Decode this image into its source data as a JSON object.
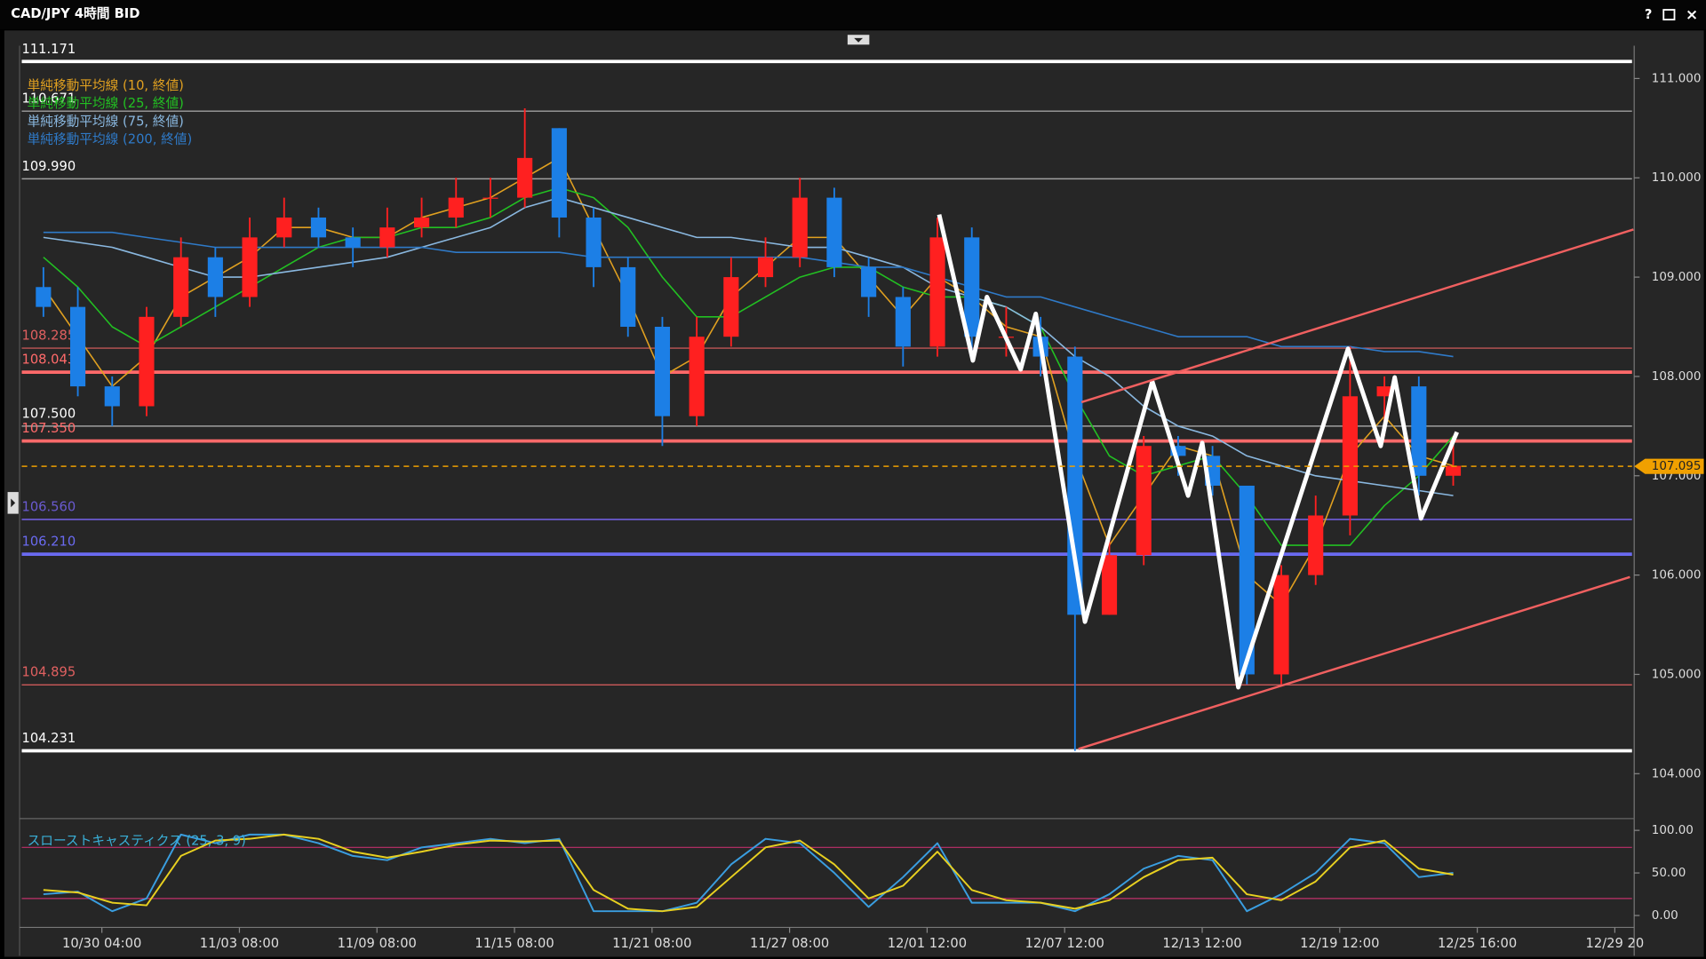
{
  "ui": {
    "help": "?",
    "close": "×"
  },
  "chart_data": [
    {
      "type": "candlestick",
      "title": "CAD/JPY 4時間 BID",
      "x": [
        0,
        1,
        2,
        3,
        4,
        5,
        6,
        7,
        8,
        9,
        10,
        11,
        12,
        13,
        14,
        15,
        16,
        17,
        18,
        19,
        20,
        21,
        22,
        23,
        24,
        25,
        26,
        27,
        28,
        29,
        30,
        31,
        32,
        33,
        34,
        35,
        36,
        37,
        38,
        39,
        40,
        41
      ],
      "open": [
        108.9,
        108.7,
        107.9,
        107.7,
        108.6,
        109.2,
        108.8,
        109.4,
        109.6,
        109.4,
        109.3,
        109.5,
        109.6,
        109.8,
        109.8,
        110.5,
        109.6,
        109.1,
        108.5,
        107.6,
        108.4,
        109.0,
        109.2,
        109.8,
        109.1,
        108.8,
        108.3,
        109.4,
        108.4,
        108.4,
        108.2,
        105.6,
        106.2,
        107.3,
        107.2,
        106.9,
        105.0,
        106.0,
        106.6,
        107.8,
        107.9,
        107.0
      ],
      "high": [
        109.1,
        108.9,
        108.0,
        108.7,
        109.4,
        109.3,
        109.6,
        109.8,
        109.7,
        109.5,
        109.7,
        109.8,
        110.0,
        110.0,
        110.7,
        110.5,
        109.7,
        109.2,
        108.6,
        108.6,
        109.2,
        109.4,
        110.0,
        109.9,
        109.2,
        108.9,
        109.6,
        109.5,
        108.7,
        108.6,
        108.3,
        106.4,
        107.4,
        107.4,
        107.3,
        106.9,
        106.1,
        106.8,
        108.3,
        108.0,
        108.0,
        107.4
      ],
      "low": [
        108.6,
        107.8,
        107.5,
        107.6,
        108.5,
        108.6,
        108.7,
        109.3,
        109.3,
        109.1,
        109.2,
        109.4,
        109.5,
        109.6,
        109.7,
        109.4,
        108.9,
        108.4,
        107.3,
        107.5,
        108.3,
        108.9,
        109.1,
        109.0,
        108.6,
        108.1,
        108.2,
        108.2,
        108.2,
        108.0,
        104.23,
        105.6,
        106.1,
        107.0,
        106.8,
        104.9,
        104.9,
        105.9,
        106.4,
        107.4,
        106.8,
        106.9
      ],
      "close": [
        108.7,
        107.9,
        107.7,
        108.6,
        109.2,
        108.8,
        109.4,
        109.6,
        109.4,
        109.3,
        109.5,
        109.6,
        109.8,
        109.8,
        110.2,
        109.6,
        109.1,
        108.5,
        107.6,
        108.4,
        109.0,
        109.2,
        109.8,
        109.1,
        108.8,
        108.3,
        109.4,
        108.4,
        108.4,
        108.2,
        105.6,
        106.2,
        107.3,
        107.2,
        106.9,
        105.0,
        106.0,
        106.6,
        107.8,
        107.9,
        107.0,
        107.1
      ],
      "up_color": "#ff2020",
      "down_color": "#1c7fe6",
      "series": [
        {
          "name": "単純移動平均線 (10, 終値)",
          "color": "#e0a020",
          "values": [
            108.9,
            108.4,
            107.9,
            108.2,
            108.8,
            109.0,
            109.2,
            109.5,
            109.5,
            109.4,
            109.4,
            109.6,
            109.7,
            109.8,
            110.0,
            110.2,
            109.5,
            108.8,
            108.0,
            108.2,
            108.8,
            109.1,
            109.4,
            109.4,
            109.0,
            108.6,
            109.0,
            108.8,
            108.5,
            108.4,
            107.2,
            106.3,
            106.8,
            107.3,
            107.2,
            106.0,
            105.7,
            106.3,
            107.2,
            107.6,
            107.2,
            107.1
          ]
        },
        {
          "name": "単純移動平均線 (25, 終値)",
          "color": "#22c022",
          "values": [
            109.2,
            108.9,
            108.5,
            108.3,
            108.5,
            108.7,
            108.9,
            109.1,
            109.3,
            109.4,
            109.4,
            109.5,
            109.5,
            109.6,
            109.8,
            109.9,
            109.8,
            109.5,
            109.0,
            108.6,
            108.6,
            108.8,
            109.0,
            109.1,
            109.1,
            108.9,
            108.8,
            108.8,
            108.7,
            108.5,
            107.8,
            107.2,
            107.0,
            107.1,
            107.2,
            106.8,
            106.3,
            106.3,
            106.3,
            106.7,
            107.0,
            107.4
          ]
        },
        {
          "name": "単純移動平均線 (75, 終値)",
          "color": "#8ab8e0",
          "values": [
            109.4,
            109.35,
            109.3,
            109.2,
            109.1,
            109.0,
            109.0,
            109.05,
            109.1,
            109.15,
            109.2,
            109.3,
            109.4,
            109.5,
            109.7,
            109.8,
            109.7,
            109.6,
            109.5,
            109.4,
            109.4,
            109.35,
            109.3,
            109.3,
            109.2,
            109.1,
            108.9,
            108.8,
            108.7,
            108.5,
            108.2,
            108.0,
            107.7,
            107.5,
            107.4,
            107.2,
            107.1,
            107.0,
            106.95,
            106.9,
            106.85,
            106.8
          ]
        },
        {
          "name": "単純移動平均線 (200, 終値)",
          "color": "#2f7ac8",
          "values": [
            109.45,
            109.45,
            109.45,
            109.4,
            109.35,
            109.3,
            109.3,
            109.3,
            109.3,
            109.3,
            109.3,
            109.3,
            109.25,
            109.25,
            109.25,
            109.25,
            109.2,
            109.2,
            109.2,
            109.2,
            109.2,
            109.2,
            109.2,
            109.15,
            109.1,
            109.1,
            109.0,
            108.9,
            108.8,
            108.8,
            108.7,
            108.6,
            108.5,
            108.4,
            108.4,
            108.4,
            108.3,
            108.3,
            108.3,
            108.25,
            108.25,
            108.2
          ]
        }
      ],
      "levels": [
        {
          "value": 111.171,
          "color": "#ffffff",
          "width": 3
        },
        {
          "value": 110.671,
          "color": "#a0a0a0",
          "width": 1.2
        },
        {
          "value": 109.99,
          "label": "109.990",
          "color": "#a0a0a0",
          "width": 1.2
        },
        {
          "value": 108.285,
          "color": "#e06060",
          "width": 1
        },
        {
          "value": 108.043,
          "color": "#ff6a6a",
          "width": 3
        },
        {
          "value": 107.5,
          "label": "107.500",
          "color": "#a0a0a0",
          "width": 1.2
        },
        {
          "value": 107.35,
          "label": "107.350",
          "color": "#ff6a6a",
          "width": 3
        },
        {
          "value": 106.56,
          "label": "106.560",
          "color": "#6a5ad0",
          "width": 1.5
        },
        {
          "value": 106.21,
          "label": "106.210",
          "color": "#6a6af0",
          "width": 3
        },
        {
          "value": 104.895,
          "color": "#e06060",
          "width": 1
        },
        {
          "value": 104.231,
          "color": "#ffffff",
          "width": 3
        }
      ],
      "drawings": [
        {
          "color": "#ffffff",
          "width": 4,
          "x": [
            26.05,
            27.03,
            27.44,
            28.42,
            28.86,
            30.29,
            32.25,
            33.29,
            33.7,
            34.75,
            37.94,
            38.89,
            39.3,
            40.06,
            41.11
          ],
          "y": [
            109.63,
            108.16,
            108.8,
            108.07,
            108.63,
            105.53,
            107.95,
            106.8,
            107.33,
            104.87,
            108.28,
            107.3,
            107.99,
            106.57,
            107.44
          ]
        },
        {
          "color": "#f06060",
          "width": 2,
          "x": [
            30.19,
            46.24
          ],
          "y": [
            107.74,
            109.48
          ]
        },
        {
          "color": "#f06060",
          "width": 2,
          "x": [
            30.1,
            46.14
          ],
          "y": [
            104.25,
            105.98
          ]
        }
      ],
      "current": {
        "value": 107.095,
        "color": "#f0a000"
      },
      "xlim": [
        -0.63,
        46.2
      ],
      "ylim": [
        103.57,
        111.33
      ],
      "yticks": [
        {
          "value": 104,
          "label": "104.000"
        },
        {
          "value": 105,
          "label": "105.000"
        },
        {
          "value": 106,
          "label": "106.000"
        },
        {
          "value": 107,
          "label": "107.000"
        },
        {
          "value": 108,
          "label": "108.000"
        },
        {
          "value": 109,
          "label": "109.000"
        },
        {
          "value": 110,
          "label": "110.000"
        },
        {
          "value": 111,
          "label": "111.000"
        }
      ],
      "grid": false
    },
    {
      "type": "line",
      "title": "スローストキャスティクス (25, 3, 9)",
      "title_color": "#3ab0d8",
      "x": [
        0,
        1,
        2,
        3,
        4,
        5,
        6,
        7,
        8,
        9,
        10,
        11,
        12,
        13,
        14,
        15,
        16,
        17,
        18,
        19,
        20,
        21,
        22,
        23,
        24,
        25,
        26,
        27,
        28,
        29,
        30,
        31,
        32,
        33,
        34,
        35,
        36,
        37,
        38,
        39,
        40,
        41
      ],
      "series": [
        {
          "color": "#3a9ee0",
          "values": [
            25,
            28,
            5,
            20,
            95,
            85,
            95,
            95,
            85,
            70,
            65,
            80,
            85,
            90,
            85,
            90,
            5,
            5,
            5,
            15,
            60,
            90,
            85,
            50,
            10,
            45,
            85,
            15,
            15,
            15,
            5,
            25,
            55,
            70,
            65,
            5,
            25,
            50,
            90,
            85,
            45,
            50
          ]
        },
        {
          "color": "#e8d020",
          "values": [
            30,
            27,
            15,
            12,
            70,
            88,
            90,
            95,
            90,
            75,
            68,
            75,
            83,
            88,
            87,
            88,
            30,
            8,
            5,
            10,
            45,
            80,
            88,
            60,
            20,
            35,
            75,
            30,
            18,
            15,
            8,
            18,
            45,
            65,
            68,
            25,
            18,
            40,
            80,
            88,
            55,
            48
          ]
        }
      ],
      "levels": [
        80,
        20
      ],
      "level_color": "#c0306a",
      "xlim": [
        -0.63,
        46.2
      ],
      "ylim": [
        -14,
        110
      ],
      "yticks": [
        {
          "value": 0,
          "label": "0.00"
        },
        {
          "value": 50,
          "label": "50.00"
        },
        {
          "value": 100,
          "label": "100.00"
        }
      ],
      "xticks": [
        {
          "value": 1.7,
          "label": "10/30 04:00"
        },
        {
          "value": 5.7,
          "label": "11/03 08:00"
        },
        {
          "value": 9.7,
          "label": "11/09 08:00"
        },
        {
          "value": 13.7,
          "label": "11/15 08:00"
        },
        {
          "value": 17.7,
          "label": "11/21 08:00"
        },
        {
          "value": 21.7,
          "label": "11/27 08:00"
        },
        {
          "value": 25.7,
          "label": "12/01 12:00"
        },
        {
          "value": 29.7,
          "label": "12/07 12:00"
        },
        {
          "value": 33.7,
          "label": "12/13 12:00"
        },
        {
          "value": 37.7,
          "label": "12/19 12:00"
        },
        {
          "value": 41.7,
          "label": "12/25 16:00"
        },
        {
          "value": 45.7,
          "label": "12/29 20"
        }
      ],
      "grid": false
    }
  ]
}
